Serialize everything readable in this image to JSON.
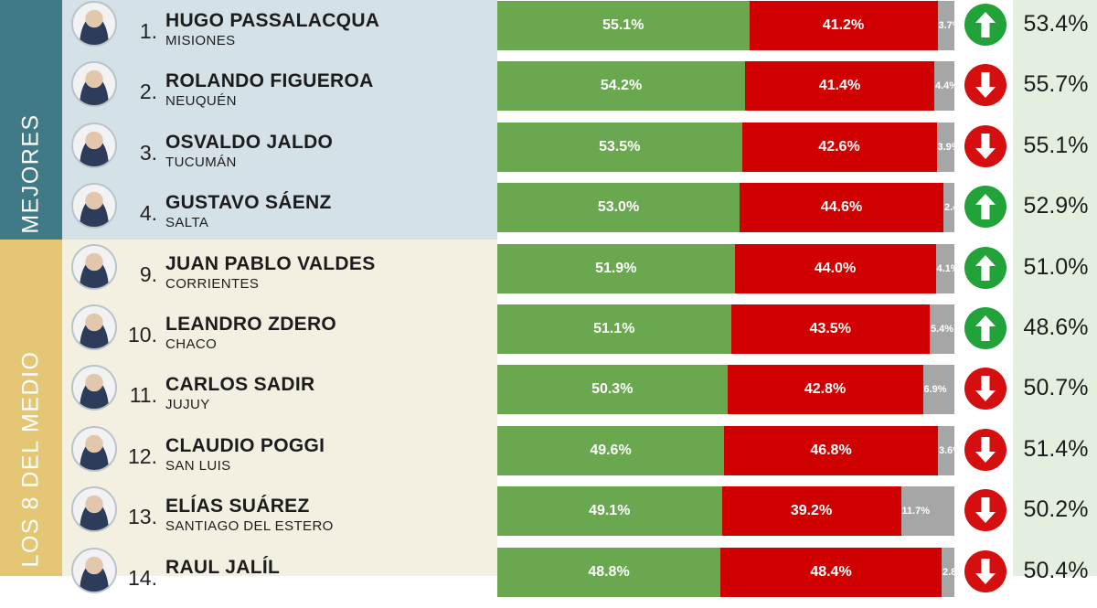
{
  "sections": {
    "best_label": "MEJORES",
    "mid_label": "LOS 8 DEL MEDIO"
  },
  "colors": {
    "positive": "#69a84f",
    "negative": "#d00000",
    "nsnc": "#a6a6a6",
    "trend_up": "#22a33a",
    "trend_down": "#d50f0f"
  },
  "chart_data": {
    "type": "bar",
    "stacked": true,
    "orientation": "horizontal",
    "series_order": [
      "positive",
      "negative",
      "nsnc"
    ],
    "rows": [
      {
        "rank": "1.",
        "name": "HUGO PASSALACQUA",
        "province": "MISIONES",
        "positive": 55.1,
        "negative": 41.2,
        "nsnc": 3.7,
        "positive_label": "55.1%",
        "negative_label": "41.2%",
        "nsnc_label": "3.7%",
        "trend": "up",
        "previous": "53.4%"
      },
      {
        "rank": "2.",
        "name": "ROLANDO FIGUEROA",
        "province": "NEUQUÉN",
        "positive": 54.2,
        "negative": 41.4,
        "nsnc": 4.4,
        "positive_label": "54.2%",
        "negative_label": "41.4%",
        "nsnc_label": "4.4%",
        "trend": "down",
        "previous": "55.7%"
      },
      {
        "rank": "3.",
        "name": "OSVALDO JALDO",
        "province": "TUCUMÁN",
        "positive": 53.5,
        "negative": 42.6,
        "nsnc": 3.9,
        "positive_label": "53.5%",
        "negative_label": "42.6%",
        "nsnc_label": "3.9%",
        "trend": "down",
        "previous": "55.1%"
      },
      {
        "rank": "4.",
        "name": "GUSTAVO SÁENZ",
        "province": "SALTA",
        "positive": 53.0,
        "negative": 44.6,
        "nsnc": 2.4,
        "positive_label": "53.0%",
        "negative_label": "44.6%",
        "nsnc_label": "2.4%",
        "trend": "up",
        "previous": "52.9%"
      },
      {
        "rank": "9.",
        "name": "JUAN PABLO VALDES",
        "province": "CORRIENTES",
        "positive": 51.9,
        "negative": 44.0,
        "nsnc": 4.1,
        "positive_label": "51.9%",
        "negative_label": "44.0%",
        "nsnc_label": "4.1%",
        "trend": "up",
        "previous": "51.0%"
      },
      {
        "rank": "10.",
        "name": "LEANDRO ZDERO",
        "province": "CHACO",
        "positive": 51.1,
        "negative": 43.5,
        "nsnc": 5.4,
        "positive_label": "51.1%",
        "negative_label": "43.5%",
        "nsnc_label": "5.4%",
        "trend": "up",
        "previous": "48.6%"
      },
      {
        "rank": "11.",
        "name": "CARLOS SADIR",
        "province": "JUJUY",
        "positive": 50.3,
        "negative": 42.8,
        "nsnc": 6.9,
        "positive_label": "50.3%",
        "negative_label": "42.8%",
        "nsnc_label": "6.9%",
        "trend": "down",
        "previous": "50.7%"
      },
      {
        "rank": "12.",
        "name": "CLAUDIO POGGI",
        "province": "SAN LUIS",
        "positive": 49.6,
        "negative": 46.8,
        "nsnc": 3.6,
        "positive_label": "49.6%",
        "negative_label": "46.8%",
        "nsnc_label": "3.6%",
        "trend": "down",
        "previous": "51.4%"
      },
      {
        "rank": "13.",
        "name": "ELÍAS SUÁREZ",
        "province": "SANTIAGO DEL ESTERO",
        "positive": 49.1,
        "negative": 39.2,
        "nsnc": 11.7,
        "positive_label": "49.1%",
        "negative_label": "39.2%",
        "nsnc_label": "11.7%",
        "trend": "down",
        "previous": "50.2%"
      },
      {
        "rank": "14.",
        "name": "RAUL JALÍL",
        "province": "",
        "positive": 48.8,
        "negative": 48.4,
        "nsnc": 2.8,
        "positive_label": "48.8%",
        "negative_label": "48.4%",
        "nsnc_label": "2.8%",
        "trend": "down",
        "previous": "50.4%"
      }
    ],
    "xlim": [
      0,
      100
    ]
  }
}
